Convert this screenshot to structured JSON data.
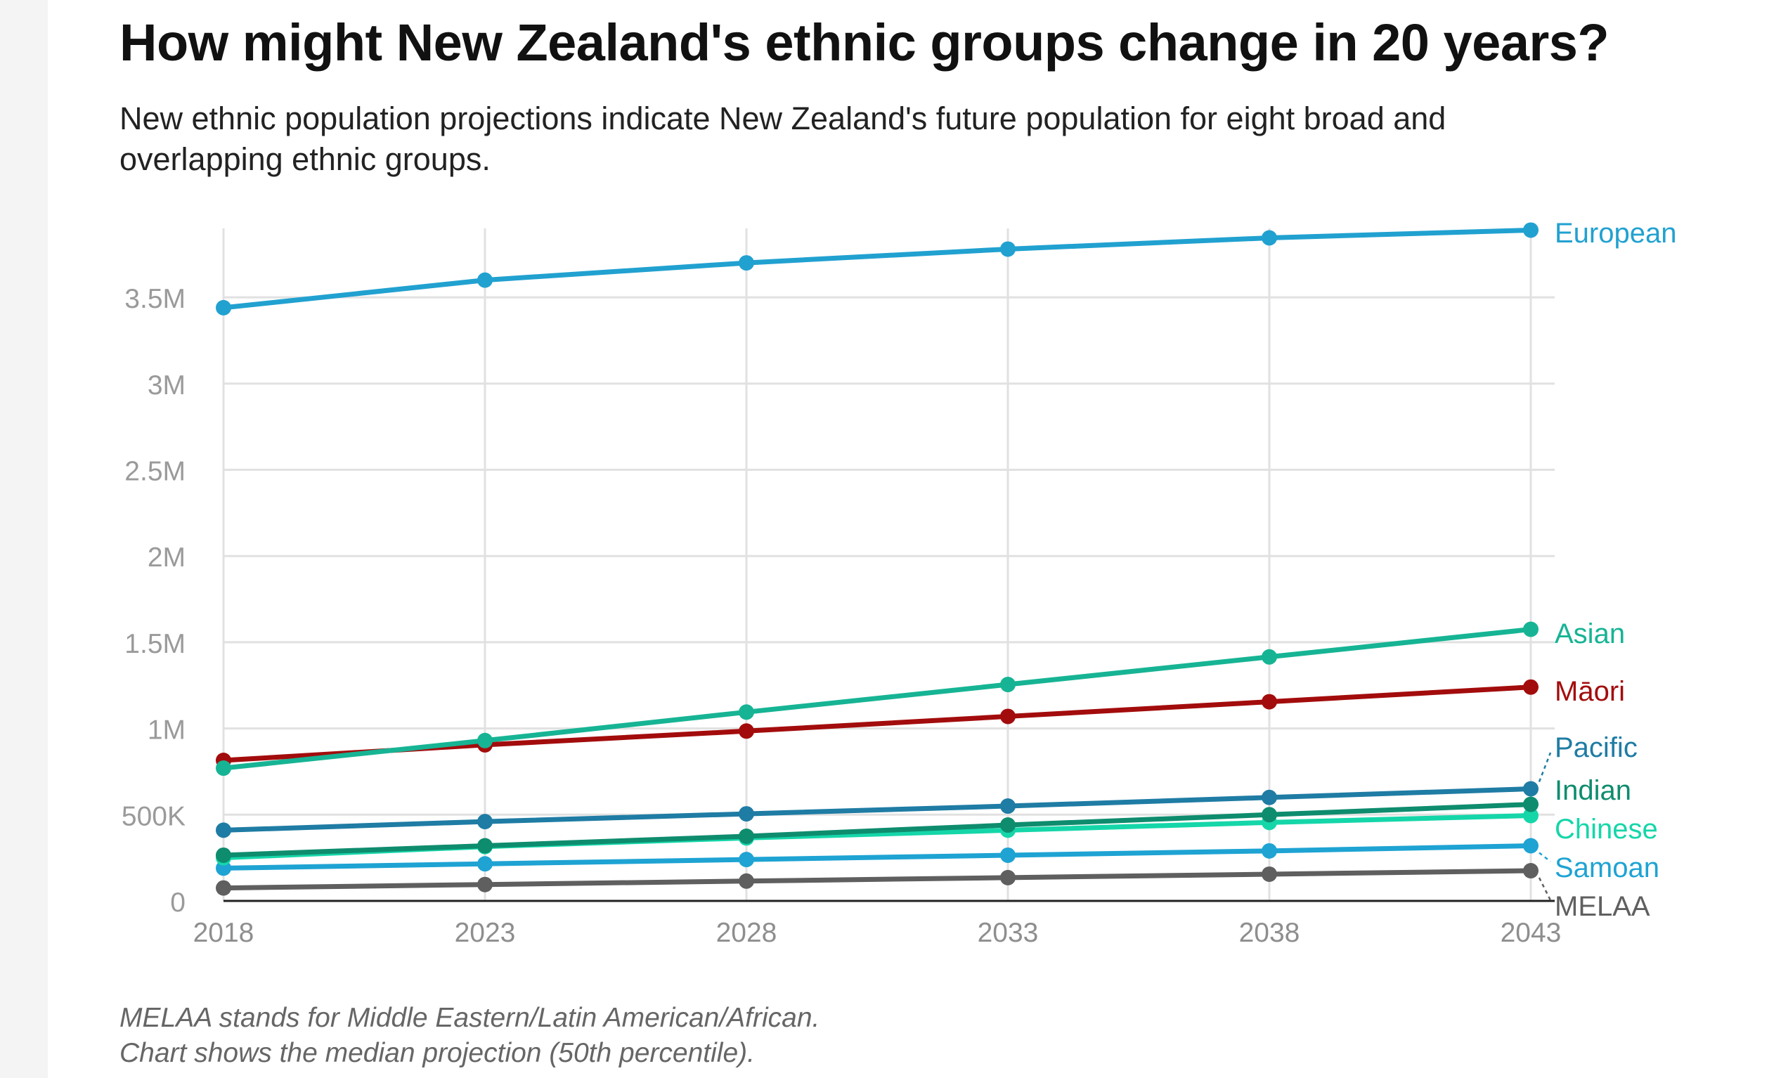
{
  "title": "How might New Zealand's ethnic groups change in 20 years?",
  "subtitle": "New ethnic population projections indicate New Zealand's future population for eight broad and overlapping ethnic groups.",
  "notes": [
    "MELAA stands for Middle Eastern/Latin American/African.",
    "Chart shows the median projection (50th percentile)."
  ],
  "chart_data": {
    "type": "line",
    "x": [
      2018,
      2023,
      2028,
      2033,
      2038,
      2043
    ],
    "x_tick_labels": [
      "2018",
      "2023",
      "2028",
      "2033",
      "2038",
      "2043"
    ],
    "ylim": [
      0,
      3900000
    ],
    "y_ticks": [
      0,
      500000,
      1000000,
      1500000,
      2000000,
      2500000,
      3000000,
      3500000
    ],
    "y_tick_labels": [
      "0",
      "500K",
      "1M",
      "1.5M",
      "2M",
      "2.5M",
      "3M",
      "3.5M"
    ],
    "grid": true,
    "legend": "direct labels at right end of lines",
    "series": [
      {
        "name": "MELAA",
        "color": "#5f5f5f",
        "values": [
          75000,
          95000,
          115000,
          135000,
          155000,
          175000
        ]
      },
      {
        "name": "Samoan",
        "color": "#1ea3d3",
        "values": [
          190000,
          215000,
          240000,
          265000,
          290000,
          320000
        ]
      },
      {
        "name": "Chinese",
        "color": "#15d6a9",
        "values": [
          250000,
          315000,
          365000,
          410000,
          455000,
          495000
        ]
      },
      {
        "name": "Indian",
        "color": "#0e8c6e",
        "values": [
          265000,
          320000,
          375000,
          440000,
          500000,
          560000
        ]
      },
      {
        "name": "Pacific",
        "color": "#1f7ca4",
        "values": [
          410000,
          460000,
          505000,
          550000,
          600000,
          650000
        ]
      },
      {
        "name": "Māori",
        "color": "#a30c0c",
        "values": [
          815000,
          905000,
          985000,
          1070000,
          1155000,
          1240000
        ]
      },
      {
        "name": "Asian",
        "color": "#16b494",
        "values": [
          770000,
          930000,
          1095000,
          1255000,
          1415000,
          1575000
        ]
      },
      {
        "name": "European",
        "color": "#21a1d0",
        "values": [
          3440000,
          3600000,
          3700000,
          3780000,
          3845000,
          3890000
        ]
      }
    ]
  }
}
